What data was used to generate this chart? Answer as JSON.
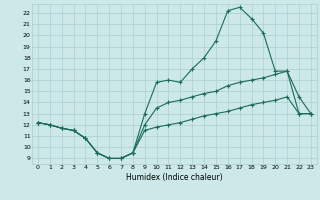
{
  "xlabel": "Humidex (Indice chaleur)",
  "bg_color": "#cce8e8",
  "line_color": "#1a6b5a",
  "grid_color": "#aacfcf",
  "xlim": [
    -0.5,
    23.5
  ],
  "ylim": [
    8.5,
    22.8
  ],
  "xticks": [
    0,
    1,
    2,
    3,
    4,
    5,
    6,
    7,
    8,
    9,
    10,
    11,
    12,
    13,
    14,
    15,
    16,
    17,
    18,
    19,
    20,
    21,
    22,
    23
  ],
  "yticks": [
    9,
    10,
    11,
    12,
    13,
    14,
    15,
    16,
    17,
    18,
    19,
    20,
    21,
    22
  ],
  "line_top_x": [
    0,
    1,
    2,
    3,
    4,
    5,
    6,
    7,
    8,
    9,
    10,
    11,
    12,
    13,
    14,
    15,
    16,
    17,
    18,
    19,
    20,
    21,
    22,
    23
  ],
  "line_top_y": [
    12.2,
    12.0,
    11.7,
    11.5,
    10.8,
    9.5,
    9.0,
    9.0,
    9.5,
    13.0,
    15.8,
    16.0,
    15.8,
    17.0,
    18.0,
    19.5,
    22.2,
    22.5,
    21.5,
    20.2,
    16.8,
    16.8,
    14.5,
    13.0
  ],
  "line_mid_x": [
    0,
    1,
    2,
    3,
    4,
    5,
    6,
    7,
    8,
    9,
    10,
    11,
    12,
    13,
    14,
    15,
    16,
    17,
    18,
    19,
    20,
    21,
    22,
    23
  ],
  "line_mid_y": [
    12.2,
    12.0,
    11.7,
    11.5,
    10.8,
    9.5,
    9.0,
    9.0,
    9.5,
    12.0,
    13.5,
    14.0,
    14.2,
    14.5,
    14.8,
    15.0,
    15.5,
    15.8,
    16.0,
    16.2,
    16.5,
    16.8,
    13.0,
    13.0
  ],
  "line_bot_x": [
    0,
    1,
    2,
    3,
    4,
    5,
    6,
    7,
    8,
    9,
    10,
    11,
    12,
    13,
    14,
    15,
    16,
    17,
    18,
    19,
    20,
    21,
    22,
    23
  ],
  "line_bot_y": [
    12.2,
    12.0,
    11.7,
    11.5,
    10.8,
    9.5,
    9.0,
    9.0,
    9.5,
    11.5,
    11.8,
    12.0,
    12.2,
    12.5,
    12.8,
    13.0,
    13.2,
    13.5,
    13.8,
    14.0,
    14.2,
    14.5,
    13.0,
    13.0
  ]
}
